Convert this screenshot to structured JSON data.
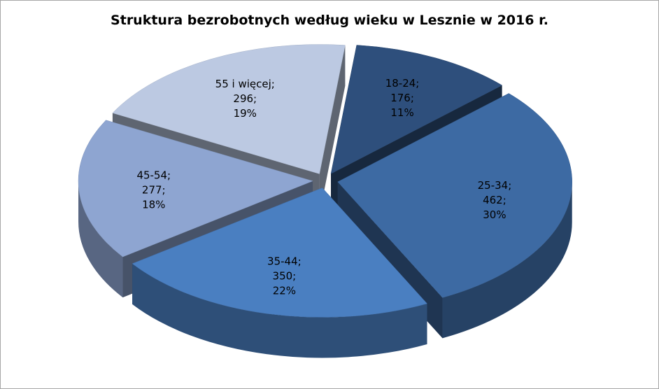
{
  "chart_data": {
    "type": "pie",
    "title": "Struktura bezrobotnych według wieku w Lesznie w 2016 r.",
    "slices": [
      {
        "label": "18-24",
        "value": 176,
        "percent": "11%",
        "color": "#2e4f7c"
      },
      {
        "label": "25-34",
        "value": 462,
        "percent": "30%",
        "color": "#3d6aa3"
      },
      {
        "label": "35-44",
        "value": 350,
        "percent": "22%",
        "color": "#4a7fc1"
      },
      {
        "label": "45-54",
        "value": 277,
        "percent": "18%",
        "color": "#8ea5d1"
      },
      {
        "label": "55 i więcej",
        "value": 296,
        "percent": "19%",
        "color": "#bcc9e2"
      }
    ],
    "legend": "none",
    "exploded": true,
    "style": "3d"
  }
}
